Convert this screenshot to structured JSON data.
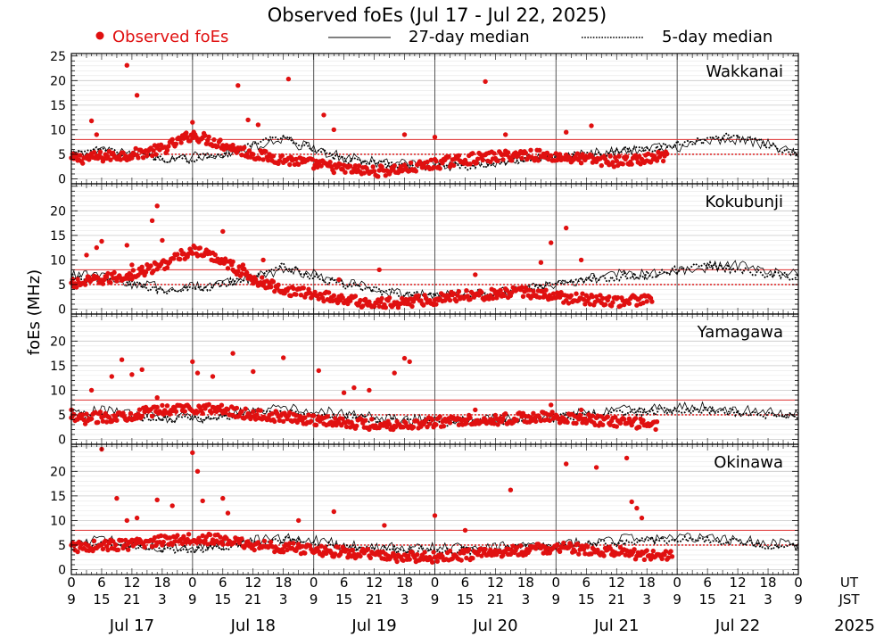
{
  "colors": {
    "observed": "#e01010",
    "threshold": "#e03030",
    "median": "#000000",
    "grid": "#c8c8c8",
    "axis": "#000000"
  },
  "chart_data": {
    "type": "scatter",
    "title": "Observed foEs (Jul 17 - Jul 22, 2025)",
    "ylabel": "foEs (MHz)",
    "legend": {
      "observed": "Observed foEs",
      "median27": "27-day median",
      "median5": "5-day median"
    },
    "ylim": [
      -1,
      25.5
    ],
    "yticks_top_panel": [
      0,
      5,
      10,
      15,
      20,
      25
    ],
    "yticks_other_panels": [
      0,
      5,
      10,
      15,
      20
    ],
    "reference_lines": {
      "solid": 8,
      "dotted": 5
    },
    "xaxis": {
      "days": [
        "Jul 17",
        "Jul 18",
        "Jul 19",
        "Jul 20",
        "Jul 21",
        "Jul 22"
      ],
      "ut_labels": [
        "0",
        "6",
        "12",
        "18",
        "0",
        "6",
        "12",
        "18",
        "0",
        "6",
        "12",
        "18",
        "0",
        "6",
        "12",
        "18",
        "0",
        "6",
        "12",
        "18",
        "0",
        "6",
        "12",
        "18",
        "0"
      ],
      "jst_labels": [
        "9",
        "15",
        "21",
        "3",
        "9",
        "15",
        "21",
        "3",
        "9",
        "15",
        "21",
        "3",
        "9",
        "15",
        "21",
        "3",
        "9",
        "15",
        "21",
        "3",
        "9",
        "15",
        "21",
        "3",
        "9"
      ],
      "ut_tag": "UT",
      "jst_tag": "JST",
      "year": "2025"
    },
    "stations": [
      {
        "name": "Wakkanai",
        "observed_hours": 118,
        "median27": [
          5,
          5.5,
          5,
          4,
          4.5,
          5,
          6.5,
          8,
          6,
          4.5,
          3.5,
          3,
          3,
          3,
          3.5,
          4,
          4.5,
          5,
          5.5,
          6,
          6.5,
          7.5,
          8,
          7
        ],
        "median5": [
          5,
          6,
          5,
          4,
          4,
          5,
          7,
          9,
          6,
          4,
          3,
          2.5,
          2.5,
          2.5,
          3,
          4,
          4.5,
          5,
          5.5,
          6,
          7,
          8,
          9,
          7
        ],
        "observed_series": [
          4,
          4.5,
          5,
          6,
          9,
          7,
          5,
          4,
          3,
          2,
          1.5,
          2,
          3,
          4,
          4.5,
          5,
          4.5,
          4,
          3.5,
          4,
          5,
          5.5,
          6,
          5
        ],
        "spikes": [
          [
            1,
            4.5
          ],
          [
            4,
            11.8
          ],
          [
            5,
            9
          ],
          [
            11,
            23.1
          ],
          [
            13,
            17
          ],
          [
            24,
            11.5
          ],
          [
            33,
            19
          ],
          [
            35,
            12
          ],
          [
            37,
            11
          ],
          [
            43,
            20.3
          ],
          [
            50,
            13
          ],
          [
            52,
            10
          ],
          [
            66,
            9
          ],
          [
            72,
            8.5
          ],
          [
            82,
            19.8
          ],
          [
            86,
            9
          ],
          [
            98,
            9.5
          ],
          [
            103,
            10.8
          ]
        ]
      },
      {
        "name": "Kokubunji",
        "observed_hours": 115,
        "median27": [
          7,
          6.5,
          5,
          4.5,
          4.5,
          5,
          6.5,
          8,
          7,
          5.5,
          4,
          3,
          3,
          3,
          3.5,
          4,
          5,
          6,
          7,
          7,
          7.5,
          8.5,
          9,
          7.5
        ],
        "median5": [
          6.5,
          6,
          5,
          4,
          4,
          5,
          6.5,
          9,
          6.5,
          5,
          4,
          3,
          2.5,
          3,
          3,
          4,
          5,
          6,
          6.5,
          7,
          8,
          9,
          8,
          7
        ],
        "observed_series": [
          5,
          6,
          7,
          9,
          12,
          10,
          6,
          4,
          3,
          2,
          1,
          1.5,
          2,
          3,
          3,
          3.5,
          2.5,
          2,
          1.5,
          2,
          3,
          4,
          5,
          4
        ],
        "spikes": [
          [
            3,
            11
          ],
          [
            5,
            12.5
          ],
          [
            6,
            13.8
          ],
          [
            11,
            13
          ],
          [
            12,
            9
          ],
          [
            16,
            18
          ],
          [
            17,
            21
          ],
          [
            18,
            14
          ],
          [
            25,
            11
          ],
          [
            30,
            15.8
          ],
          [
            32,
            8
          ],
          [
            34,
            9
          ],
          [
            38,
            10
          ],
          [
            53,
            6
          ],
          [
            61,
            8
          ],
          [
            80,
            7
          ],
          [
            93,
            9.5
          ],
          [
            95,
            13.5
          ],
          [
            98,
            16.5
          ],
          [
            101,
            10
          ]
        ]
      },
      {
        "name": "Yamagawa",
        "observed_hours": 116,
        "median27": [
          5,
          6,
          5,
          4.5,
          4.5,
          5,
          6,
          6.5,
          6,
          5,
          4.5,
          4,
          4,
          4,
          4,
          4.5,
          5,
          5.5,
          6,
          6,
          6.5,
          6.5,
          6,
          5.5
        ],
        "median5": [
          4.5,
          5,
          4.5,
          4,
          4,
          4.5,
          5.5,
          6,
          5,
          4.5,
          4,
          3.5,
          3.5,
          3.5,
          3.5,
          4,
          4.5,
          5,
          5.5,
          5.5,
          6,
          6,
          5.5,
          5
        ],
        "observed_series": [
          4,
          4.5,
          5,
          6,
          6.5,
          6,
          5,
          4.5,
          4,
          3.5,
          3,
          3,
          3.5,
          4,
          4,
          4.5,
          4.5,
          4,
          3.5,
          3,
          3,
          3.5,
          4,
          4.5
        ],
        "spikes": [
          [
            0,
            6
          ],
          [
            4,
            10
          ],
          [
            8,
            12.8
          ],
          [
            10,
            16.2
          ],
          [
            12,
            13.2
          ],
          [
            14,
            14.2
          ],
          [
            17,
            8.5
          ],
          [
            24,
            15.8
          ],
          [
            25,
            13.5
          ],
          [
            28,
            12.8
          ],
          [
            32,
            17.5
          ],
          [
            36,
            13.8
          ],
          [
            42,
            16.6
          ],
          [
            49,
            14
          ],
          [
            54,
            9.5
          ],
          [
            56,
            10.5
          ],
          [
            59,
            10
          ],
          [
            64,
            13.5
          ],
          [
            66,
            16.5
          ],
          [
            67,
            15.8
          ],
          [
            80,
            6
          ],
          [
            95,
            7
          ],
          [
            101,
            6
          ]
        ]
      },
      {
        "name": "Okinawa",
        "observed_hours": 119,
        "median27": [
          5,
          6,
          5.5,
          4.5,
          4.5,
          5,
          6,
          6.5,
          6,
          5,
          4.5,
          4.5,
          4.5,
          4.5,
          4.5,
          5,
          5,
          5.5,
          6,
          6.5,
          6.5,
          6.5,
          6,
          5.5
        ],
        "median5": [
          4.5,
          5.5,
          5,
          4,
          4,
          4.5,
          5.5,
          6,
          5.5,
          4.5,
          4,
          4,
          4,
          4,
          4,
          4.5,
          4.5,
          5,
          5.5,
          6,
          6,
          6,
          5.5,
          5
        ],
        "observed_series": [
          4.5,
          5,
          5,
          6,
          6.5,
          6,
          5,
          4.5,
          4,
          3.5,
          3,
          2.5,
          2.5,
          3,
          3.5,
          4,
          4.5,
          4,
          3.5,
          3,
          3,
          3.5,
          4,
          4.5
        ],
        "spikes": [
          [
            6,
            24.5
          ],
          [
            9,
            14.5
          ],
          [
            11,
            10
          ],
          [
            13,
            10.5
          ],
          [
            17,
            14.2
          ],
          [
            20,
            13
          ],
          [
            24,
            23.8
          ],
          [
            25,
            20
          ],
          [
            26,
            14
          ],
          [
            30,
            14.5
          ],
          [
            31,
            11.5
          ],
          [
            45,
            10
          ],
          [
            52,
            11.8
          ],
          [
            62,
            9
          ],
          [
            72,
            11
          ],
          [
            78,
            8
          ],
          [
            87,
            16.2
          ],
          [
            98,
            21.5
          ],
          [
            104,
            20.8
          ],
          [
            110,
            22.7
          ],
          [
            111,
            13.8
          ],
          [
            112,
            12.5
          ],
          [
            113,
            10.5
          ]
        ]
      }
    ]
  }
}
